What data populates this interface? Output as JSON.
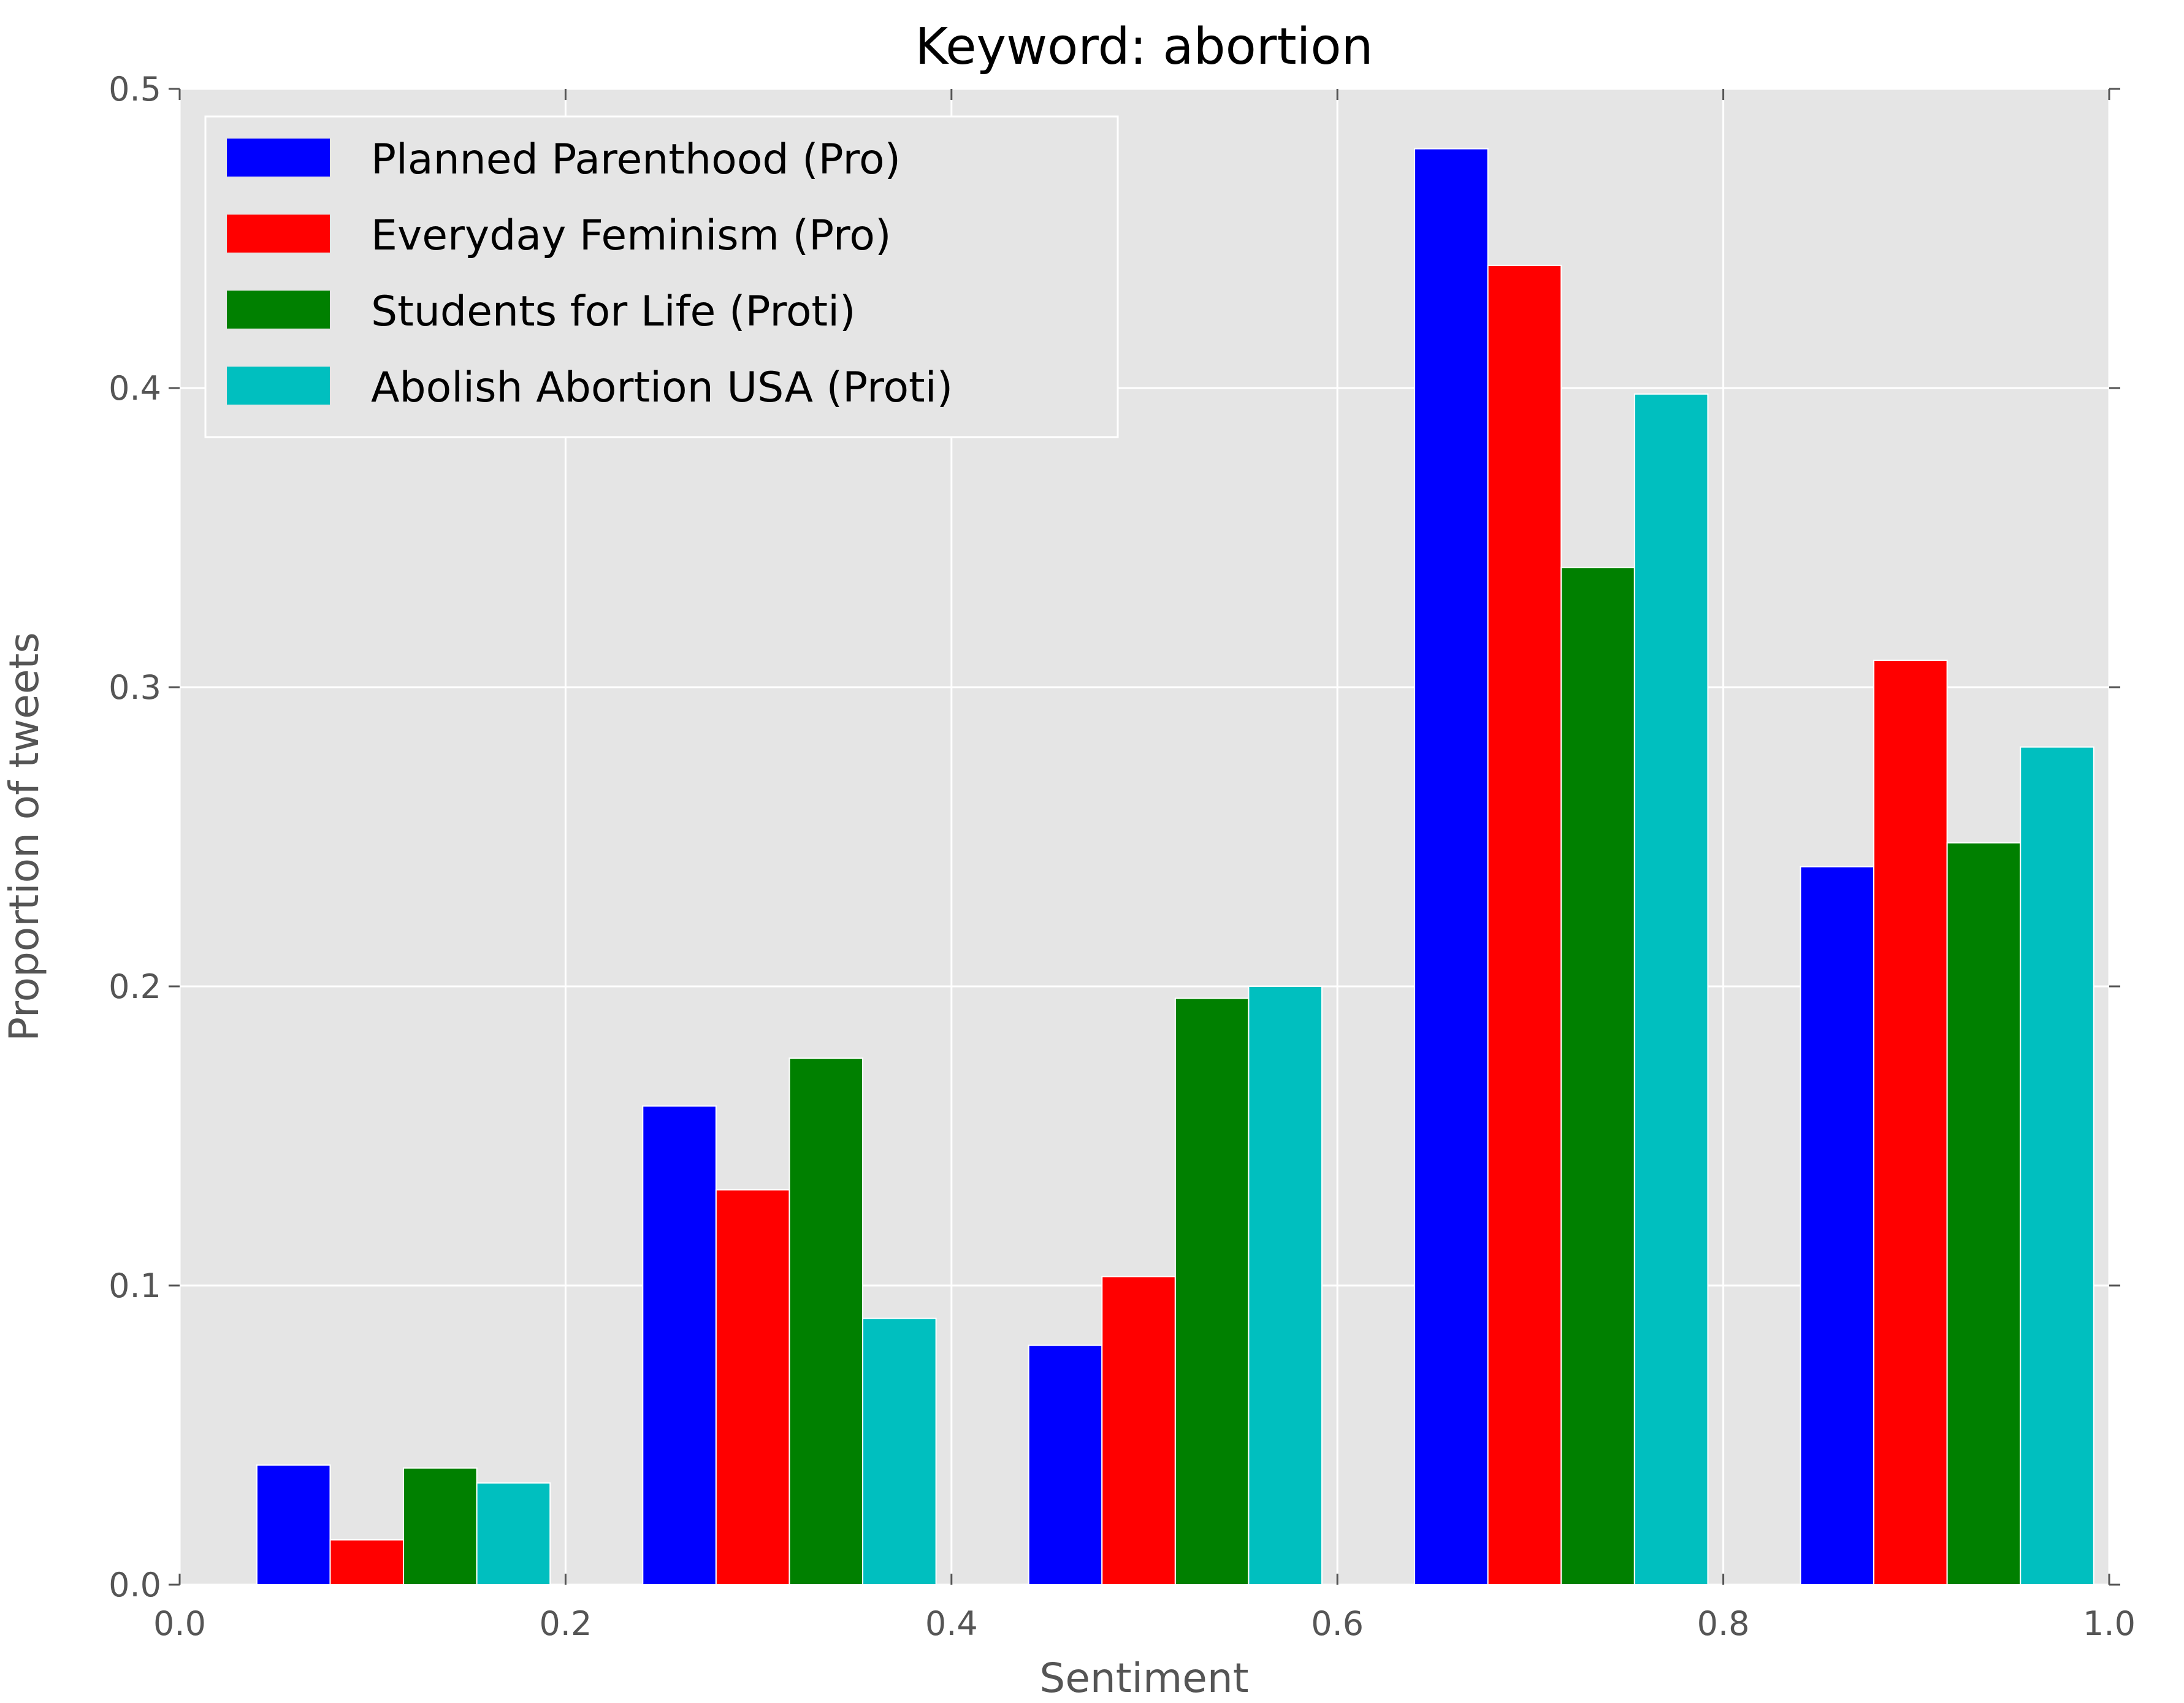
{
  "chart_data": {
    "type": "bar",
    "title": "Keyword: abortion",
    "xlabel": "Sentiment",
    "ylabel": "Proportion of tweets",
    "xlim": [
      0.0,
      1.0
    ],
    "ylim": [
      0.0,
      0.5
    ],
    "xticks": [
      "0.0",
      "0.2",
      "0.4",
      "0.6",
      "0.8",
      "1.0"
    ],
    "yticks": [
      "0.0",
      "0.1",
      "0.2",
      "0.3",
      "0.4",
      "0.5"
    ],
    "grid": true,
    "legend_position": "top-left",
    "bin_starts": [
      0.0,
      0.2,
      0.4,
      0.6,
      0.8
    ],
    "series": [
      {
        "name": "Planned Parenthood (Pro)",
        "color": "#0000ff",
        "values": [
          0.04,
          0.16,
          0.08,
          0.48,
          0.24
        ]
      },
      {
        "name": "Everyday Feminism (Pro)",
        "color": "#ff0000",
        "values": [
          0.015,
          0.132,
          0.103,
          0.441,
          0.309
        ]
      },
      {
        "name": "Students for Life (Proti)",
        "color": "#008000",
        "values": [
          0.039,
          0.176,
          0.196,
          0.34,
          0.248
        ]
      },
      {
        "name": "Abolish Abortion USA (Proti)",
        "color": "#00bfbf",
        "values": [
          0.034,
          0.089,
          0.2,
          0.398,
          0.28
        ]
      }
    ]
  }
}
